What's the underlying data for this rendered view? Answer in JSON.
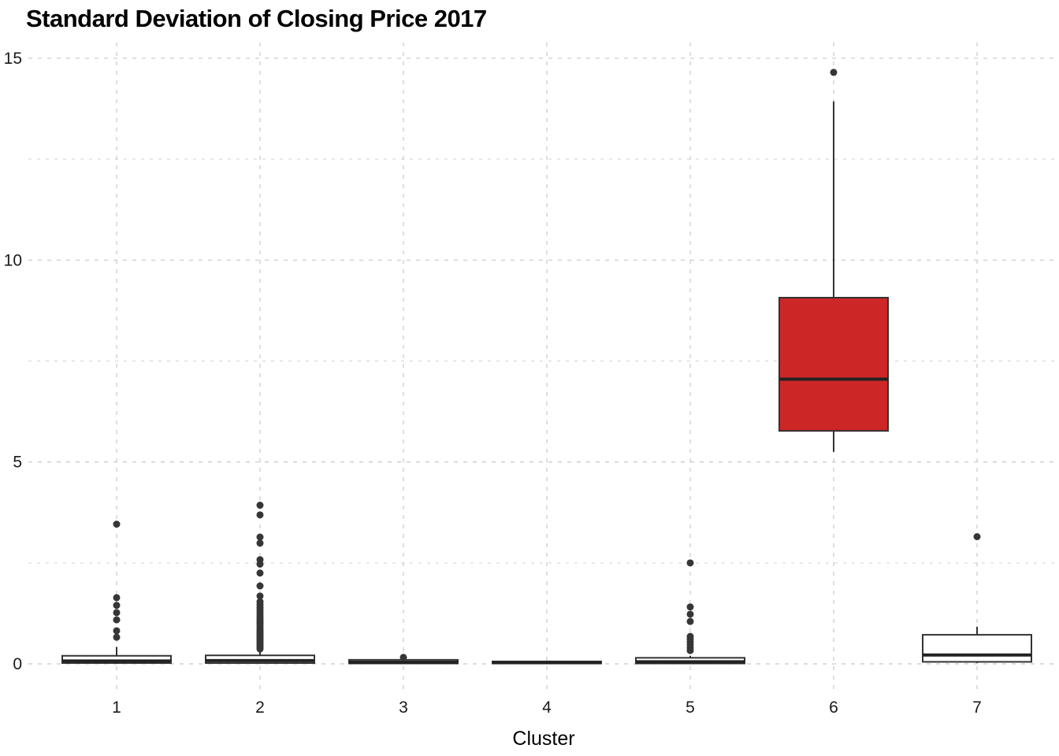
{
  "chart_data": {
    "type": "boxplot",
    "title": "Standard Deviation of Closing Price 2017",
    "xlabel": "Cluster",
    "ylabel": "",
    "categories": [
      "1",
      "2",
      "3",
      "4",
      "5",
      "6",
      "7"
    ],
    "y_ticks": [
      0,
      5,
      10,
      15
    ],
    "y_minor_ticks": [
      2.5,
      7.5,
      12.5
    ],
    "ylim": [
      -0.45,
      15.4
    ],
    "grid": "dashed",
    "legend": "none",
    "colors": {
      "highlight_fill": "#CD2626",
      "default_fill": "#FFFFFF",
      "stroke": "#333333",
      "median": "#222222",
      "outlier": "#363636",
      "gridline_major": "#C8C8C8",
      "gridline_minor": "#D2D2D2",
      "text": "#1A1A1A"
    },
    "boxes": [
      {
        "cluster": "1",
        "q1": 0.02,
        "median": 0.07,
        "q3": 0.2,
        "whisker_low": 0.0,
        "whisker_high": 0.42,
        "fill": "#FFFFFF",
        "outliers": [
          0.66,
          0.82,
          1.09,
          1.27,
          1.45,
          1.64,
          3.46
        ]
      },
      {
        "cluster": "2",
        "q1": 0.02,
        "median": 0.08,
        "q3": 0.21,
        "whisker_low": 0.0,
        "whisker_high": 0.35,
        "fill": "#FFFFFF",
        "outliers": [
          0.37,
          0.41,
          0.45,
          0.49,
          0.53,
          0.57,
          0.61,
          0.65,
          0.69,
          0.73,
          0.77,
          0.81,
          0.85,
          0.9,
          0.95,
          1.0,
          1.05,
          1.1,
          1.16,
          1.22,
          1.28,
          1.34,
          1.4,
          1.47,
          1.54,
          1.68,
          1.93,
          2.25,
          2.47,
          2.58,
          2.99,
          3.14,
          3.69,
          3.93
        ]
      },
      {
        "cluster": "3",
        "q1": 0.01,
        "median": 0.04,
        "q3": 0.1,
        "whisker_low": 0.0,
        "whisker_high": 0.12,
        "fill": "#FFFFFF",
        "outliers": [
          0.16
        ]
      },
      {
        "cluster": "4",
        "q1": 0.01,
        "median": 0.03,
        "q3": 0.06,
        "whisker_low": 0.0,
        "whisker_high": 0.08,
        "fill": "#FFFFFF",
        "outliers": []
      },
      {
        "cluster": "5",
        "q1": 0.01,
        "median": 0.05,
        "q3": 0.15,
        "whisker_low": 0.0,
        "whisker_high": 0.2,
        "fill": "#FFFFFF",
        "outliers": [
          0.33,
          0.4,
          0.47,
          0.54,
          0.61,
          0.68,
          1.05,
          1.23,
          1.41,
          2.5
        ]
      },
      {
        "cluster": "6",
        "q1": 5.77,
        "median": 7.05,
        "q3": 9.07,
        "whisker_low": 5.25,
        "whisker_high": 13.93,
        "fill": "#CD2626",
        "outliers": [
          14.65
        ]
      },
      {
        "cluster": "7",
        "q1": 0.05,
        "median": 0.22,
        "q3": 0.72,
        "whisker_low": 0.02,
        "whisker_high": 0.92,
        "fill": "#FFFFFF",
        "outliers": [
          3.15
        ]
      }
    ]
  }
}
